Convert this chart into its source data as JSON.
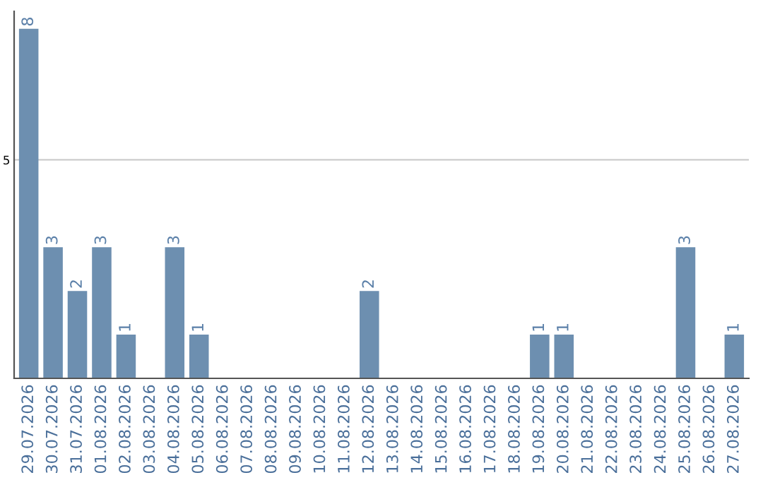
{
  "chart_data": {
    "type": "bar",
    "categories": [
      "29.07.2026",
      "30.07.2026",
      "31.07.2026",
      "01.08.2026",
      "02.08.2026",
      "03.08.2026",
      "04.08.2026",
      "05.08.2026",
      "06.08.2026",
      "07.08.2026",
      "08.08.2026",
      "09.08.2026",
      "10.08.2026",
      "11.08.2026",
      "12.08.2026",
      "13.08.2026",
      "14.08.2026",
      "15.08.2026",
      "16.08.2026",
      "17.08.2026",
      "18.08.2026",
      "19.08.2026",
      "20.08.2026",
      "21.08.2026",
      "22.08.2026",
      "23.08.2026",
      "24.08.2026",
      "25.08.2026",
      "26.08.2026",
      "27.08.2026"
    ],
    "values": [
      8,
      3,
      2,
      3,
      1,
      0,
      3,
      1,
      0,
      0,
      0,
      0,
      0,
      0,
      2,
      0,
      0,
      0,
      0,
      0,
      0,
      1,
      1,
      0,
      0,
      0,
      0,
      3,
      0,
      1
    ],
    "value_labels": [
      "8",
      "3",
      "2",
      "3",
      "1",
      null,
      "3",
      "1",
      null,
      null,
      null,
      null,
      null,
      null,
      "2",
      null,
      null,
      null,
      null,
      null,
      null,
      "1",
      "1",
      null,
      null,
      null,
      null,
      "3",
      null,
      "1"
    ],
    "color": "#6d8fb0",
    "ylim": [
      0,
      8.4
    ],
    "yticks": [
      5
    ],
    "grid": "y"
  }
}
